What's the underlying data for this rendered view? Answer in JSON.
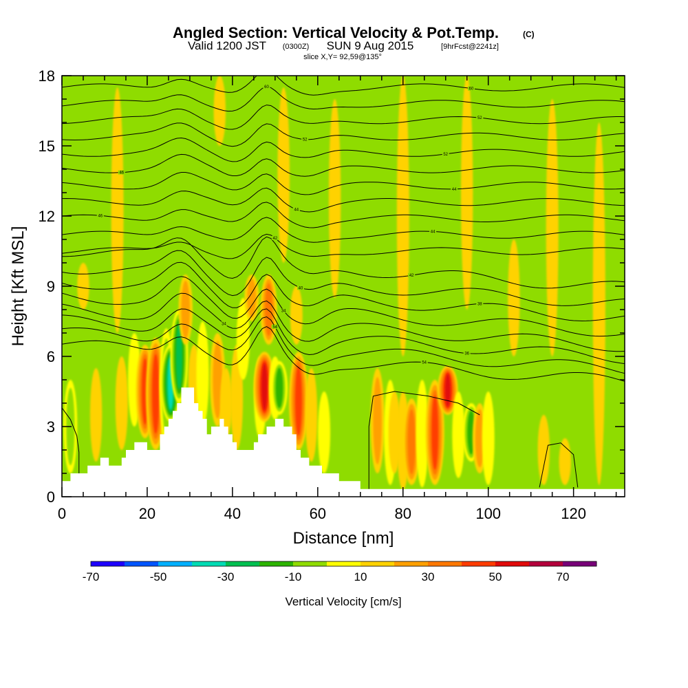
{
  "header": {
    "title": "Angled Section: Vertical Velocity & Pot.Temp.",
    "title_unit": "(C)",
    "valid_prefix": "Valid 1200 JST",
    "valid_utc": "(0300Z)",
    "valid_date": "SUN 9 Aug 2015",
    "forecast": "[9hrFcst@2241z]",
    "slice": "slice X,Y= 92,59@135°"
  },
  "colors": {
    "background_field": "#8fdc00",
    "terrain": "#ffffff",
    "contour": "#000000"
  },
  "chart_data": {
    "type": "heatmap",
    "title": "Angled Section: Vertical Velocity & Pot.Temp. (C)",
    "xlabel": "Distance [nm]",
    "ylabel": "Height [Kft MSL]",
    "xlim": [
      0,
      132
    ],
    "ylim": [
      0,
      18
    ],
    "xticks": [
      "0",
      "20",
      "40",
      "60",
      "80",
      "100",
      "120"
    ],
    "yticks": [
      "0",
      "3",
      "6",
      "9",
      "12",
      "15",
      "18"
    ],
    "colorbar": {
      "title": "Vertical Velocity [cm/s]",
      "tick_labels": [
        "-70",
        "-50",
        "-30",
        "-10",
        "10",
        "30",
        "50",
        "70"
      ],
      "colors": [
        "#1e00ff",
        "#0055ff",
        "#00b0ff",
        "#00dcb4",
        "#00c050",
        "#2db400",
        "#8fdc00",
        "#ffff00",
        "#ffd200",
        "#ffa000",
        "#ff7800",
        "#ff3c00",
        "#e10a0a",
        "#b4003c",
        "#780078"
      ]
    },
    "terrain_profile": [
      [
        0,
        0.6
      ],
      [
        1.5,
        0.9
      ],
      [
        6,
        1.2
      ],
      [
        9,
        1.6
      ],
      [
        13,
        1.3
      ],
      [
        15,
        2.0
      ],
      [
        18,
        2.3
      ],
      [
        22,
        2.0
      ],
      [
        24,
        3.0
      ],
      [
        26,
        3.6
      ],
      [
        28,
        4.5
      ],
      [
        30,
        4.6
      ],
      [
        31,
        4.0
      ],
      [
        33,
        3.2
      ],
      [
        34,
        2.8
      ],
      [
        35,
        2.9
      ],
      [
        37,
        3.3
      ],
      [
        39,
        2.6
      ],
      [
        41,
        2.1
      ],
      [
        44,
        2.0
      ],
      [
        46,
        2.5
      ],
      [
        48,
        3.0
      ],
      [
        50,
        3.3
      ],
      [
        53,
        3.0
      ],
      [
        55,
        2.0
      ],
      [
        57,
        1.6
      ],
      [
        60,
        1.2
      ],
      [
        62,
        1.0
      ],
      [
        65,
        0.8
      ],
      [
        68,
        0.6
      ],
      [
        71,
        0.4
      ],
      [
        72,
        0.3
      ],
      [
        132,
        0.3
      ]
    ],
    "features": [
      {
        "x": 2,
        "y0": 1.0,
        "y1": 5.0,
        "w": -20
      },
      {
        "x": 8,
        "y0": 1.5,
        "y1": 5.5,
        "w": 12
      },
      {
        "x": 13,
        "y0": 7.0,
        "y1": 17.5,
        "w": 14
      },
      {
        "x": 14,
        "y0": 2.0,
        "y1": 6.0,
        "w": 15
      },
      {
        "x": 17,
        "y0": 3.0,
        "y1": 7.0,
        "w": -16
      },
      {
        "x": 19.5,
        "y0": 2.5,
        "y1": 6.5,
        "w": 42
      },
      {
        "x": 22,
        "y0": 2.0,
        "y1": 6.8,
        "w": 48
      },
      {
        "x": 24.5,
        "y0": 2.2,
        "y1": 7.2,
        "w": -22
      },
      {
        "x": 25.5,
        "y0": 3.2,
        "y1": 6.5,
        "w": -52
      },
      {
        "x": 27.5,
        "y0": 4.0,
        "y1": 8.0,
        "w": -40
      },
      {
        "x": 29,
        "y0": 6.5,
        "y1": 9.5,
        "w": 22
      },
      {
        "x": 31,
        "y0": 3.5,
        "y1": 6.5,
        "w": 10
      },
      {
        "x": 33,
        "y0": 3.0,
        "y1": 7.5,
        "w": -15
      },
      {
        "x": 36.5,
        "y0": 3.0,
        "y1": 7.0,
        "w": 28
      },
      {
        "x": 38.5,
        "y0": 2.5,
        "y1": 5.5,
        "w": 12
      },
      {
        "x": 41,
        "y0": 2.0,
        "y1": 6.5,
        "w": 14
      },
      {
        "x": 42.5,
        "y0": 5.0,
        "y1": 8.5,
        "w": -18
      },
      {
        "x": 44.5,
        "y0": 7.5,
        "y1": 9.5,
        "w": 24
      },
      {
        "x": 46.5,
        "y0": 2.5,
        "y1": 6.0,
        "w": -14
      },
      {
        "x": 47.5,
        "y0": 3.2,
        "y1": 6.2,
        "w": 58
      },
      {
        "x": 48.5,
        "y0": 6.5,
        "y1": 9.5,
        "w": 34
      },
      {
        "x": 50,
        "y0": 3.3,
        "y1": 6.0,
        "w": -15
      },
      {
        "x": 51,
        "y0": 3.5,
        "y1": 5.8,
        "w": -34
      },
      {
        "x": 55.5,
        "y0": 2.0,
        "y1": 6.2,
        "w": 46
      },
      {
        "x": 58.5,
        "y0": 1.5,
        "y1": 5.5,
        "w": 12
      },
      {
        "x": 61.5,
        "y0": 1.0,
        "y1": 4.5,
        "w": -14
      },
      {
        "x": 74,
        "y0": 1.0,
        "y1": 5.5,
        "w": 22
      },
      {
        "x": 77,
        "y0": 0.5,
        "y1": 5.0,
        "w": -15
      },
      {
        "x": 78,
        "y0": 1.0,
        "y1": 4.5,
        "w": 12
      },
      {
        "x": 80,
        "y0": 0.3,
        "y1": 4.5,
        "w": 14
      },
      {
        "x": 82,
        "y0": 0.5,
        "y1": 4.2,
        "w": 38
      },
      {
        "x": 84.5,
        "y0": 0.4,
        "y1": 5.0,
        "w": -14
      },
      {
        "x": 87.5,
        "y0": 0.5,
        "y1": 5.0,
        "w": 44
      },
      {
        "x": 90.5,
        "y0": 3.5,
        "y1": 5.6,
        "w": 52
      },
      {
        "x": 93,
        "y0": 0.8,
        "y1": 4.5,
        "w": -14
      },
      {
        "x": 96,
        "y0": 1.5,
        "y1": 4.0,
        "w": -38
      },
      {
        "x": 98,
        "y0": 1.0,
        "y1": 4.0,
        "w": 24
      },
      {
        "x": 100,
        "y0": 0.5,
        "y1": 4.5,
        "w": -14
      },
      {
        "x": 80,
        "y0": 6.0,
        "y1": 18,
        "w": 14
      },
      {
        "x": 95,
        "y0": 8.0,
        "y1": 18,
        "w": 12
      },
      {
        "x": 106,
        "y0": 6.0,
        "y1": 11.0,
        "w": 12
      },
      {
        "x": 115,
        "y0": 6.0,
        "y1": 17.0,
        "w": 14
      },
      {
        "x": 126,
        "y0": 0.5,
        "y1": 16.0,
        "w": 15
      },
      {
        "x": 113,
        "y0": 0.5,
        "y1": 3.5,
        "w": 12
      },
      {
        "x": 118,
        "y0": 0.5,
        "y1": 2.5,
        "w": 12
      },
      {
        "x": 5,
        "y0": 8.0,
        "y1": 10.0,
        "w": 12
      },
      {
        "x": 52,
        "y0": 10.0,
        "y1": 17.5,
        "w": 13
      },
      {
        "x": 37,
        "y0": 15.0,
        "y1": 18,
        "w": 12
      },
      {
        "x": 55,
        "y0": 6.5,
        "y1": 9.0,
        "w": 14
      },
      {
        "x": 64,
        "y0": 8.5,
        "y1": 17.0,
        "w": 12
      }
    ],
    "theta_contours": [
      {
        "base": 5.8,
        "label": "54",
        "lx": 85
      },
      {
        "base": 6.3,
        "label": "54",
        "lx": 50
      },
      {
        "base": 6.8,
        "label": "36",
        "lx": 95
      },
      {
        "base": 7.3,
        "label": "34",
        "lx": 38
      },
      {
        "base": 7.9,
        "label": "34",
        "lx": 52
      },
      {
        "base": 8.5,
        "label": "38",
        "lx": 98
      },
      {
        "base": 9.1,
        "label": "40",
        "lx": 56
      },
      {
        "base": 9.8,
        "label": "42",
        "lx": 82
      },
      {
        "base": 10.5,
        "label": "42",
        "lx": 50
      },
      {
        "base": 11.2,
        "label": "44",
        "lx": 87
      },
      {
        "base": 11.9,
        "label": "46",
        "lx": 9
      },
      {
        "base": 12.6,
        "label": "44",
        "lx": 55
      },
      {
        "base": 13.3,
        "label": "44",
        "lx": 92
      },
      {
        "base": 14.0,
        "label": "46",
        "lx": 14
      },
      {
        "base": 14.7,
        "label": "52",
        "lx": 90
      },
      {
        "base": 15.4,
        "label": "52",
        "lx": 57
      },
      {
        "base": 16.1,
        "label": "52",
        "lx": 98
      },
      {
        "base": 16.8,
        "label": "60",
        "lx": 48
      },
      {
        "base": 17.5,
        "label": "60",
        "lx": 96
      }
    ],
    "w_zero_contours": [
      [
        [
          0,
          3.8
        ],
        [
          2,
          3.3
        ],
        [
          3.5,
          2.6
        ],
        [
          4,
          1.9
        ],
        [
          4,
          1.0
        ]
      ],
      [
        [
          72,
          0.3
        ],
        [
          72,
          3.0
        ],
        [
          73,
          4.3
        ],
        [
          78,
          4.5
        ],
        [
          86,
          4.3
        ],
        [
          93,
          4.0
        ],
        [
          98,
          3.5
        ]
      ],
      [
        [
          112,
          0.4
        ],
        [
          114,
          2.2
        ],
        [
          117,
          2.3
        ],
        [
          120,
          1.8
        ],
        [
          121,
          0.4
        ]
      ]
    ]
  }
}
